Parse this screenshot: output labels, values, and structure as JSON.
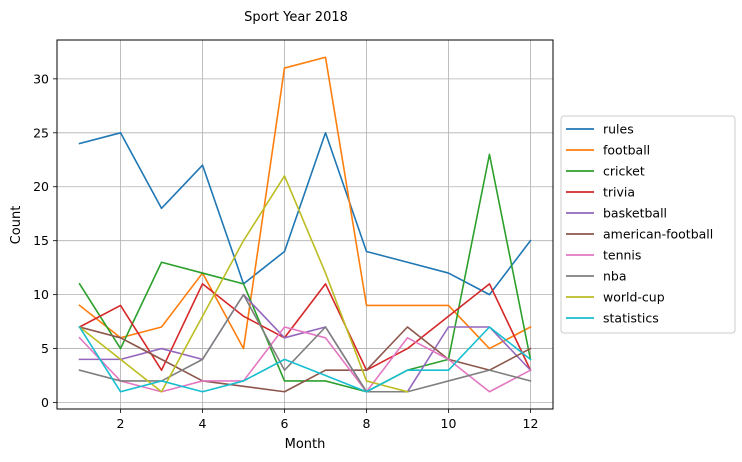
{
  "chart_data": {
    "type": "line",
    "title": "Sport Year 2018",
    "xlabel": "Month",
    "ylabel": "Count",
    "x": [
      1,
      2,
      3,
      4,
      5,
      6,
      7,
      8,
      9,
      10,
      11,
      12
    ],
    "xlim": [
      0.45,
      12.55
    ],
    "ylim": [
      -0.6,
      33.6
    ],
    "xticks": [
      2,
      4,
      6,
      8,
      10,
      12
    ],
    "yticks": [
      0,
      5,
      10,
      15,
      20,
      25,
      30
    ],
    "grid": true,
    "legend_position": "center-right-outside",
    "series": [
      {
        "name": "rules",
        "color": "#1f77b4",
        "values": [
          24,
          25,
          18,
          22,
          11,
          14,
          25,
          14,
          13,
          12,
          10,
          15
        ]
      },
      {
        "name": "football",
        "color": "#ff7f0e",
        "values": [
          9,
          6,
          7,
          12,
          5,
          31,
          32,
          9,
          9,
          9,
          5,
          7
        ]
      },
      {
        "name": "cricket",
        "color": "#2ca02c",
        "values": [
          11,
          5,
          13,
          12,
          11,
          2,
          2,
          1,
          3,
          4,
          23,
          4
        ]
      },
      {
        "name": "trivia",
        "color": "#d62728",
        "values": [
          7,
          9,
          3,
          11,
          8,
          6,
          11,
          3,
          5,
          8,
          11,
          3
        ]
      },
      {
        "name": "basketball",
        "color": "#9467bd",
        "values": [
          4,
          4,
          5,
          4,
          10,
          6,
          7,
          1,
          1,
          7,
          7,
          3
        ]
      },
      {
        "name": "american-football",
        "color": "#8c564b",
        "values": [
          7,
          6,
          4,
          2,
          1.5,
          1,
          3,
          3,
          7,
          4,
          3,
          5
        ]
      },
      {
        "name": "tennis",
        "color": "#e377c2",
        "values": [
          6,
          2,
          1,
          2,
          2,
          7,
          6,
          1,
          6,
          4,
          1,
          3
        ]
      },
      {
        "name": "nba",
        "color": "#7f7f7f",
        "values": [
          3,
          2,
          2,
          4,
          10,
          3,
          7,
          1,
          1,
          2,
          3,
          2
        ]
      },
      {
        "name": "world-cup",
        "color": "#bcbd22",
        "values": [
          7,
          4,
          1,
          8,
          15,
          21,
          12,
          2,
          1,
          null,
          null,
          null
        ]
      },
      {
        "name": "statistics",
        "color": "#17becf",
        "values": [
          7,
          1,
          2,
          1,
          2,
          4,
          2.5,
          1,
          3,
          3,
          7,
          4
        ]
      }
    ]
  }
}
